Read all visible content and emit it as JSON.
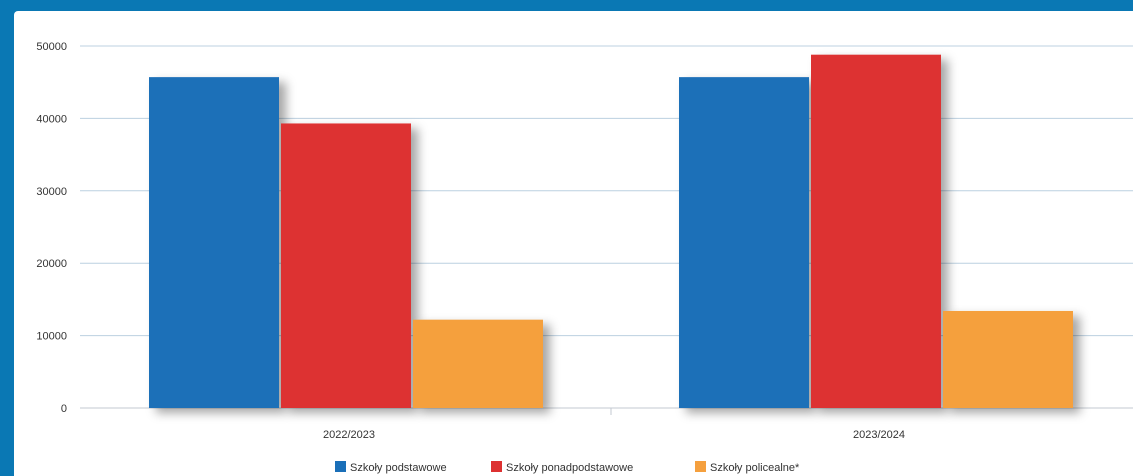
{
  "chart_data": {
    "type": "bar",
    "categories": [
      "2022/2023",
      "2023/2024"
    ],
    "series": [
      {
        "name": "Szkoły podstawowe",
        "color": "#1a6fb8",
        "values": [
          45700,
          45700
        ]
      },
      {
        "name": "Szkoły ponadpodstawowe",
        "color": "#dd3131",
        "values": [
          39300,
          48800
        ]
      },
      {
        "name": "Szkoły policealne*",
        "color": "#f5a03e",
        "values": [
          12200,
          13400
        ]
      }
    ],
    "y_ticks": [
      "0",
      "10000",
      "20000",
      "30000",
      "40000",
      "50000"
    ],
    "ylim": [
      0,
      50000
    ],
    "grid": true,
    "legend_position": "bottom-center"
  }
}
